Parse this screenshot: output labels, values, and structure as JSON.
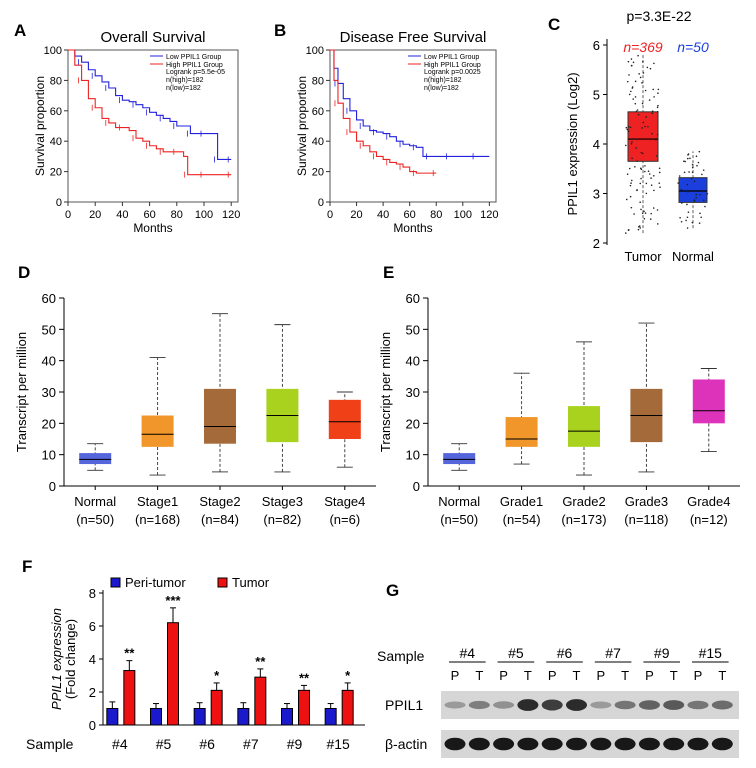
{
  "panels": {
    "A": "A",
    "B": "B",
    "C": "C",
    "D": "D",
    "E": "E",
    "F": "F",
    "G": "G"
  },
  "colors": {
    "low": "#2222dd",
    "high": "#ee2222",
    "tumor_box": "#ee2222",
    "normal_box": "#1a3fdd",
    "normal_stage": "#5566dd",
    "stage1": "#f0962a",
    "stage2": "#a56a3a",
    "stage3": "#a8d21e",
    "stage4": "#f04018",
    "grade4": "#dd33bb",
    "peri": "#1a1acc",
    "tumor_bar": "#ee1111"
  },
  "chart_data": [
    {
      "id": "A",
      "type": "line",
      "title": "Overall Survival",
      "xlabel": "Months",
      "ylabel": "Survival proportion",
      "xlim": [
        0,
        125
      ],
      "ylim": [
        0,
        100
      ],
      "xticks": [
        "0",
        "20",
        "40",
        "60",
        "80",
        "100",
        "120"
      ],
      "yticks": [
        "0",
        "20",
        "40",
        "60",
        "80",
        "100"
      ],
      "legend": [
        "Low PPIL1 Group",
        "High PPIL1 Group"
      ],
      "stats": [
        "Logrank p=5.5e-05",
        "n(high)=182",
        "n(low)=182"
      ],
      "series": [
        {
          "name": "Low PPIL1 Group",
          "color": "#2222dd",
          "x": [
            0,
            5,
            10,
            15,
            20,
            25,
            30,
            35,
            40,
            45,
            50,
            55,
            60,
            65,
            70,
            75,
            80,
            85,
            90,
            95,
            100,
            105,
            110,
            115,
            120
          ],
          "y": [
            100,
            96,
            92,
            87,
            83,
            79,
            75,
            70,
            67,
            66,
            64,
            62,
            59,
            57,
            55,
            53,
            50,
            50,
            45,
            45,
            45,
            45,
            28,
            28,
            28
          ]
        },
        {
          "name": "High PPIL1 Group",
          "color": "#ee2222",
          "x": [
            0,
            5,
            10,
            15,
            20,
            25,
            30,
            35,
            40,
            45,
            50,
            55,
            60,
            65,
            70,
            75,
            80,
            85,
            88,
            95,
            100,
            110,
            120
          ],
          "y": [
            100,
            90,
            80,
            68,
            62,
            55,
            52,
            49,
            49,
            47,
            42,
            40,
            37,
            35,
            33,
            33,
            33,
            30,
            18,
            18,
            18,
            18,
            18
          ]
        }
      ]
    },
    {
      "id": "B",
      "type": "line",
      "title": "Disease Free Survival",
      "xlabel": "Months",
      "ylabel": "Survival proportion",
      "xlim": [
        0,
        125
      ],
      "ylim": [
        0,
        100
      ],
      "xticks": [
        "0",
        "20",
        "40",
        "60",
        "80",
        "100",
        "120"
      ],
      "yticks": [
        "0",
        "20",
        "40",
        "60",
        "80",
        "100"
      ],
      "legend": [
        "Low PPIL1 Group",
        "High PPIL1 Group"
      ],
      "stats": [
        "Logrank p=0.0025",
        "n(high)=182",
        "n(low)=182"
      ],
      "series": [
        {
          "name": "Low PPIL1 Group",
          "color": "#2222dd",
          "x": [
            0,
            3,
            6,
            10,
            15,
            20,
            25,
            30,
            35,
            40,
            45,
            50,
            55,
            60,
            65,
            70,
            75,
            80,
            90,
            100,
            110,
            120
          ],
          "y": [
            100,
            88,
            78,
            68,
            60,
            54,
            50,
            47,
            46,
            45,
            43,
            40,
            38,
            37,
            36,
            30,
            30,
            30,
            30,
            30,
            30,
            30
          ]
        },
        {
          "name": "High PPIL1 Group",
          "color": "#ee2222",
          "x": [
            0,
            3,
            6,
            10,
            15,
            20,
            25,
            30,
            35,
            40,
            45,
            50,
            55,
            60,
            65,
            70,
            80
          ],
          "y": [
            100,
            80,
            65,
            55,
            46,
            40,
            37,
            33,
            30,
            28,
            26,
            25,
            23,
            20,
            19,
            19,
            19
          ]
        }
      ]
    },
    {
      "id": "C",
      "type": "box",
      "title": "p=3.3E-22",
      "ylabel": "PPIL1 expression (Log2)",
      "ylim": [
        2,
        6
      ],
      "yticks": [
        "2",
        "3",
        "4",
        "5",
        "6"
      ],
      "categories": [
        "Tumor",
        "Normal"
      ],
      "n_labels": [
        "n=369",
        "n=50"
      ],
      "boxes": [
        {
          "name": "Tumor",
          "min": 2.2,
          "q1": 3.65,
          "median": 4.1,
          "q3": 4.65,
          "max": 5.8
        },
        {
          "name": "Normal",
          "min": 2.3,
          "q1": 2.82,
          "median": 3.05,
          "q3": 3.32,
          "max": 3.85
        }
      ]
    },
    {
      "id": "D",
      "type": "box",
      "ylabel": "Transcript per million",
      "ylim": [
        0,
        60
      ],
      "yticks": [
        "0",
        "10",
        "20",
        "30",
        "40",
        "50",
        "60"
      ],
      "categories": [
        "Normal",
        "Stage1",
        "Stage2",
        "Stage3",
        "Stage4"
      ],
      "n_labels": [
        "(n=50)",
        "(n=168)",
        "(n=84)",
        "(n=82)",
        "(n=6)"
      ],
      "boxes": [
        {
          "name": "Normal",
          "min": 5,
          "q1": 7,
          "median": 8.5,
          "q3": 10.5,
          "max": 13.5
        },
        {
          "name": "Stage1",
          "min": 3.5,
          "q1": 12.5,
          "median": 16.5,
          "q3": 22.5,
          "max": 41
        },
        {
          "name": "Stage2",
          "min": 4.5,
          "q1": 13.5,
          "median": 19,
          "q3": 31,
          "max": 55
        },
        {
          "name": "Stage3",
          "min": 4.5,
          "q1": 14,
          "median": 22.5,
          "q3": 31,
          "max": 51.5
        },
        {
          "name": "Stage4",
          "min": 6,
          "q1": 15,
          "median": 20.5,
          "q3": 27.5,
          "max": 30
        }
      ]
    },
    {
      "id": "E",
      "type": "box",
      "ylabel": "Transcript per million",
      "ylim": [
        0,
        60
      ],
      "yticks": [
        "0",
        "10",
        "20",
        "30",
        "40",
        "50",
        "60"
      ],
      "categories": [
        "Normal",
        "Grade1",
        "Grade2",
        "Grade3",
        "Grade4"
      ],
      "n_labels": [
        "(n=50)",
        "(n=54)",
        "(n=173)",
        "(n=118)",
        "(n=12)"
      ],
      "boxes": [
        {
          "name": "Normal",
          "min": 5,
          "q1": 7,
          "median": 8.5,
          "q3": 10.5,
          "max": 13.5
        },
        {
          "name": "Grade1",
          "min": 7,
          "q1": 12.5,
          "median": 15,
          "q3": 22,
          "max": 36
        },
        {
          "name": "Grade2",
          "min": 3.5,
          "q1": 12.5,
          "median": 17.5,
          "q3": 25.5,
          "max": 46
        },
        {
          "name": "Grade3",
          "min": 4.5,
          "q1": 14,
          "median": 22.5,
          "q3": 31,
          "max": 52
        },
        {
          "name": "Grade4",
          "min": 11,
          "q1": 20,
          "median": 24,
          "q3": 34,
          "max": 37.5
        }
      ]
    },
    {
      "id": "F",
      "type": "bar",
      "ylabel": "PPIL1 expression",
      "ylabel2": "(Fold change)",
      "xlabel": "Sample",
      "ylim": [
        0,
        8
      ],
      "yticks": [
        "0",
        "2",
        "4",
        "6",
        "8"
      ],
      "categories": [
        "#4",
        "#5",
        "#6",
        "#7",
        "#9",
        "#15"
      ],
      "series": [
        {
          "name": "Peri-tumor",
          "values": [
            1,
            1,
            1,
            1,
            1,
            1
          ],
          "errors": [
            0.4,
            0.3,
            0.35,
            0.35,
            0.3,
            0.3
          ]
        },
        {
          "name": "Tumor",
          "values": [
            3.3,
            6.2,
            2.1,
            2.9,
            2.1,
            2.1
          ],
          "errors": [
            0.6,
            0.9,
            0.45,
            0.5,
            0.3,
            0.45
          ]
        }
      ],
      "significance": [
        "**",
        "***",
        "*",
        "**",
        "**",
        "*"
      ]
    }
  ],
  "blot": {
    "id": "G",
    "sample_label": "Sample",
    "samples": [
      "#4",
      "#5",
      "#6",
      "#7",
      "#9",
      "#15"
    ],
    "lanes": [
      "P",
      "T",
      "P",
      "T",
      "P",
      "T",
      "P",
      "T",
      "P",
      "T",
      "P",
      "T"
    ],
    "rows": [
      {
        "name": "PPIL1",
        "intensity": [
          0.25,
          0.4,
          0.3,
          0.85,
          0.75,
          0.85,
          0.25,
          0.45,
          0.55,
          0.6,
          0.45,
          0.5
        ]
      },
      {
        "name": "β-actin",
        "intensity": [
          0.95,
          0.95,
          0.95,
          0.95,
          0.95,
          0.95,
          0.95,
          0.95,
          0.95,
          0.95,
          0.95,
          0.95
        ]
      }
    ]
  }
}
